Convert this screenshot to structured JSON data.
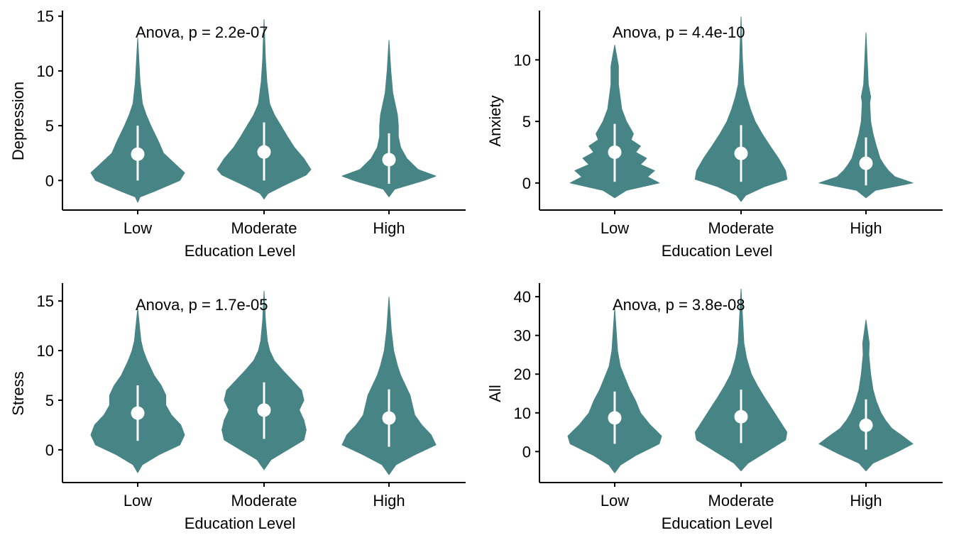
{
  "colors": {
    "violin": "#468486",
    "summary": "#ffffff",
    "axis": "#000000"
  },
  "chart_data": [
    {
      "type": "violin",
      "panel": "top-left",
      "xlabel": "Education Level",
      "ylabel": "Depression",
      "annotation": "Anova, p = 2.2e-07",
      "categories": [
        "Low",
        "Moderate",
        "High"
      ],
      "ylim": [
        -2.7,
        15.5
      ],
      "yticks": [
        0,
        5,
        10,
        15
      ],
      "violins": [
        {
          "ymin": -2.0,
          "ymax": 13.0,
          "mean": 2.4,
          "lo": 0.0,
          "hi": 5.0,
          "profile": [
            [
              -2.0,
              0.0
            ],
            [
              -1.5,
              0.05
            ],
            [
              -1.0,
              0.35
            ],
            [
              0.0,
              0.9
            ],
            [
              0.7,
              1.0
            ],
            [
              1.5,
              0.8
            ],
            [
              2.5,
              0.55
            ],
            [
              3.5,
              0.45
            ],
            [
              5.0,
              0.28
            ],
            [
              6.0,
              0.18
            ],
            [
              7.0,
              0.1
            ],
            [
              9.0,
              0.05
            ],
            [
              13.0,
              0.0
            ]
          ]
        },
        {
          "ymin": -1.7,
          "ymax": 14.7,
          "mean": 2.6,
          "lo": 0.0,
          "hi": 5.3,
          "profile": [
            [
              -1.7,
              0.0
            ],
            [
              -1.2,
              0.08
            ],
            [
              -0.5,
              0.4
            ],
            [
              0.5,
              0.9
            ],
            [
              1.0,
              1.0
            ],
            [
              2.0,
              0.85
            ],
            [
              3.0,
              0.65
            ],
            [
              4.0,
              0.5
            ],
            [
              5.0,
              0.36
            ],
            [
              6.0,
              0.22
            ],
            [
              7.0,
              0.12
            ],
            [
              9.0,
              0.06
            ],
            [
              11.0,
              0.03
            ],
            [
              14.7,
              0.0
            ]
          ]
        },
        {
          "ymin": -1.5,
          "ymax": 12.8,
          "mean": 1.9,
          "lo": -0.3,
          "hi": 4.3,
          "profile": [
            [
              -1.5,
              0.0
            ],
            [
              -0.8,
              0.12
            ],
            [
              0.0,
              0.75
            ],
            [
              0.4,
              1.0
            ],
            [
              1.0,
              0.62
            ],
            [
              2.0,
              0.38
            ],
            [
              3.0,
              0.25
            ],
            [
              4.0,
              0.2
            ],
            [
              5.0,
              0.2
            ],
            [
              6.0,
              0.18
            ],
            [
              7.0,
              0.13
            ],
            [
              8.0,
              0.08
            ],
            [
              10.0,
              0.04
            ],
            [
              12.8,
              0.0
            ]
          ]
        }
      ]
    },
    {
      "type": "violin",
      "panel": "top-right",
      "xlabel": "Education Level",
      "ylabel": "Anxiety",
      "annotation": "Anova, p = 4.4e-10",
      "categories": [
        "Low",
        "Moderate",
        "High"
      ],
      "ylim": [
        -2.2,
        14.0
      ],
      "yticks": [
        0,
        5,
        10
      ],
      "violins": [
        {
          "ymin": -1.2,
          "ymax": 11.2,
          "mean": 2.5,
          "lo": 0.1,
          "hi": 4.8,
          "profile": [
            [
              -1.2,
              0.0
            ],
            [
              -0.6,
              0.25
            ],
            [
              0.0,
              0.95
            ],
            [
              0.5,
              0.7
            ],
            [
              1.0,
              0.85
            ],
            [
              1.5,
              0.55
            ],
            [
              2.0,
              0.68
            ],
            [
              2.5,
              0.45
            ],
            [
              3.0,
              0.55
            ],
            [
              3.5,
              0.35
            ],
            [
              4.0,
              0.4
            ],
            [
              5.0,
              0.25
            ],
            [
              6.0,
              0.15
            ],
            [
              8.0,
              0.08
            ],
            [
              9.5,
              0.08
            ],
            [
              11.2,
              0.0
            ]
          ]
        },
        {
          "ymin": -1.5,
          "ymax": 13.5,
          "mean": 2.4,
          "lo": 0.1,
          "hi": 4.7,
          "profile": [
            [
              -1.5,
              0.0
            ],
            [
              -1.0,
              0.1
            ],
            [
              -0.3,
              0.5
            ],
            [
              0.3,
              0.98
            ],
            [
              1.0,
              0.95
            ],
            [
              2.0,
              0.8
            ],
            [
              3.0,
              0.62
            ],
            [
              4.0,
              0.45
            ],
            [
              5.0,
              0.3
            ],
            [
              6.0,
              0.2
            ],
            [
              7.0,
              0.12
            ],
            [
              8.0,
              0.06
            ],
            [
              10.0,
              0.03
            ],
            [
              13.5,
              0.0
            ]
          ]
        },
        {
          "ymin": -1.2,
          "ymax": 12.2,
          "mean": 1.6,
          "lo": -0.2,
          "hi": 3.7,
          "profile": [
            [
              -1.2,
              0.0
            ],
            [
              -0.6,
              0.2
            ],
            [
              0.0,
              1.0
            ],
            [
              0.5,
              0.62
            ],
            [
              1.0,
              0.48
            ],
            [
              1.5,
              0.38
            ],
            [
              2.0,
              0.3
            ],
            [
              3.0,
              0.22
            ],
            [
              4.0,
              0.15
            ],
            [
              5.0,
              0.1
            ],
            [
              6.5,
              0.08
            ],
            [
              7.0,
              0.1
            ],
            [
              8.0,
              0.05
            ],
            [
              12.2,
              0.0
            ]
          ]
        }
      ]
    },
    {
      "type": "violin",
      "panel": "bottom-left",
      "xlabel": "Education Level",
      "ylabel": "Stress",
      "annotation": "Anova, p = 1.7e-05",
      "categories": [
        "Low",
        "Moderate",
        "High"
      ],
      "ylim": [
        -3.3,
        16.8
      ],
      "yticks": [
        0,
        5,
        10,
        15
      ],
      "violins": [
        {
          "ymin": -2.3,
          "ymax": 14.2,
          "mean": 3.7,
          "lo": 0.9,
          "hi": 6.5,
          "profile": [
            [
              -2.3,
              0.0
            ],
            [
              -1.5,
              0.1
            ],
            [
              -0.5,
              0.45
            ],
            [
              0.5,
              0.9
            ],
            [
              1.5,
              1.0
            ],
            [
              2.5,
              0.92
            ],
            [
              3.5,
              0.72
            ],
            [
              4.5,
              0.6
            ],
            [
              5.5,
              0.6
            ],
            [
              6.5,
              0.5
            ],
            [
              7.5,
              0.35
            ],
            [
              9.0,
              0.2
            ],
            [
              10.0,
              0.12
            ],
            [
              11.0,
              0.07
            ],
            [
              14.2,
              0.0
            ]
          ]
        },
        {
          "ymin": -2.0,
          "ymax": 16.0,
          "mean": 4.0,
          "lo": 1.1,
          "hi": 6.8,
          "profile": [
            [
              -2.0,
              0.0
            ],
            [
              -1.0,
              0.15
            ],
            [
              0.0,
              0.5
            ],
            [
              1.0,
              0.85
            ],
            [
              2.0,
              0.9
            ],
            [
              3.0,
              0.85
            ],
            [
              4.0,
              0.75
            ],
            [
              5.0,
              0.85
            ],
            [
              6.0,
              0.8
            ],
            [
              7.0,
              0.6
            ],
            [
              8.0,
              0.4
            ],
            [
              9.0,
              0.22
            ],
            [
              10.0,
              0.12
            ],
            [
              11.0,
              0.07
            ],
            [
              13.0,
              0.03
            ],
            [
              16.0,
              0.0
            ]
          ]
        },
        {
          "ymin": -2.5,
          "ymax": 15.4,
          "mean": 3.2,
          "lo": 0.3,
          "hi": 6.1,
          "profile": [
            [
              -2.5,
              0.0
            ],
            [
              -1.5,
              0.15
            ],
            [
              -0.5,
              0.55
            ],
            [
              0.5,
              1.0
            ],
            [
              1.5,
              0.9
            ],
            [
              2.5,
              0.7
            ],
            [
              3.5,
              0.55
            ],
            [
              4.5,
              0.5
            ],
            [
              5.5,
              0.45
            ],
            [
              6.5,
              0.35
            ],
            [
              7.5,
              0.25
            ],
            [
              8.5,
              0.18
            ],
            [
              10.0,
              0.1
            ],
            [
              12.0,
              0.05
            ],
            [
              15.4,
              0.0
            ]
          ]
        }
      ]
    },
    {
      "type": "violin",
      "panel": "bottom-right",
      "xlabel": "Education Level",
      "ylabel": "All",
      "annotation": "Anova, p = 3.8e-08",
      "categories": [
        "Low",
        "Moderate",
        "High"
      ],
      "ylim": [
        -8.0,
        43.5
      ],
      "yticks": [
        0,
        10,
        20,
        30,
        40
      ],
      "violins": [
        {
          "ymin": -5.5,
          "ymax": 37.0,
          "mean": 8.7,
          "lo": 2.0,
          "hi": 15.5,
          "profile": [
            [
              -5.5,
              0.0
            ],
            [
              -3.5,
              0.12
            ],
            [
              -1.0,
              0.45
            ],
            [
              2.0,
              0.95
            ],
            [
              4.0,
              1.0
            ],
            [
              7.0,
              0.75
            ],
            [
              10.0,
              0.55
            ],
            [
              13.0,
              0.45
            ],
            [
              16.0,
              0.32
            ],
            [
              19.0,
              0.22
            ],
            [
              22.0,
              0.12
            ],
            [
              26.0,
              0.06
            ],
            [
              37.0,
              0.0
            ]
          ]
        },
        {
          "ymin": -5.0,
          "ymax": 42.0,
          "mean": 9.0,
          "lo": 2.2,
          "hi": 16.0,
          "profile": [
            [
              -5.0,
              0.0
            ],
            [
              -3.0,
              0.15
            ],
            [
              0.0,
              0.55
            ],
            [
              3.0,
              0.95
            ],
            [
              5.0,
              0.98
            ],
            [
              8.0,
              0.82
            ],
            [
              11.0,
              0.66
            ],
            [
              14.0,
              0.5
            ],
            [
              17.0,
              0.35
            ],
            [
              20.0,
              0.22
            ],
            [
              24.0,
              0.12
            ],
            [
              28.0,
              0.06
            ],
            [
              42.0,
              0.0
            ]
          ]
        },
        {
          "ymin": -5.0,
          "ymax": 34.0,
          "mean": 6.8,
          "lo": 0.5,
          "hi": 13.5,
          "profile": [
            [
              -5.0,
              0.0
            ],
            [
              -3.0,
              0.15
            ],
            [
              -0.5,
              0.6
            ],
            [
              2.0,
              1.0
            ],
            [
              4.0,
              0.78
            ],
            [
              6.0,
              0.55
            ],
            [
              8.0,
              0.42
            ],
            [
              10.0,
              0.32
            ],
            [
              13.0,
              0.22
            ],
            [
              16.0,
              0.15
            ],
            [
              20.0,
              0.1
            ],
            [
              25.0,
              0.06
            ],
            [
              28.0,
              0.07
            ],
            [
              34.0,
              0.0
            ]
          ]
        }
      ]
    }
  ]
}
